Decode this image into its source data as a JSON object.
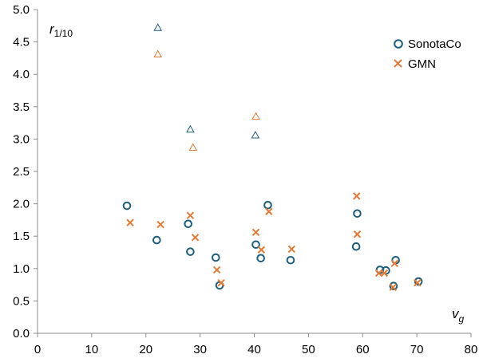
{
  "chart_data": {
    "type": "scatter",
    "xlabel": "v_g",
    "ylabel": "r_1/10",
    "xlim": [
      0,
      80
    ],
    "ylim": [
      0,
      5.0
    ],
    "x_ticks": [
      "0",
      "10",
      "20",
      "30",
      "40",
      "50",
      "60",
      "70",
      "80"
    ],
    "y_ticks": [
      "0.0",
      "0.5",
      "1.0",
      "1.5",
      "2.0",
      "2.5",
      "3.0",
      "3.5",
      "4.0",
      "4.5",
      "5.0"
    ],
    "grid": false,
    "legend_position": "top-right",
    "series": [
      {
        "name": "SonotaCo",
        "marker": "circle",
        "color": "#1f5f7a",
        "points": [
          [
            16.5,
            1.97
          ],
          [
            22.0,
            1.44
          ],
          [
            27.8,
            1.69
          ],
          [
            28.2,
            1.26
          ],
          [
            32.9,
            1.17
          ],
          [
            33.6,
            0.74
          ],
          [
            40.3,
            1.37
          ],
          [
            41.2,
            1.16
          ],
          [
            42.5,
            1.98
          ],
          [
            46.7,
            1.13
          ],
          [
            58.8,
            1.34
          ],
          [
            59.0,
            1.85
          ],
          [
            63.2,
            0.98
          ],
          [
            64.3,
            0.97
          ],
          [
            65.7,
            0.73
          ],
          [
            66.1,
            1.13
          ],
          [
            70.3,
            0.8
          ]
        ]
      },
      {
        "name": "GMN",
        "marker": "x",
        "color": "#e07b39",
        "points": [
          [
            17.1,
            1.71
          ],
          [
            22.7,
            1.68
          ],
          [
            28.2,
            1.82
          ],
          [
            29.1,
            1.48
          ],
          [
            33.1,
            0.98
          ],
          [
            33.9,
            0.78
          ],
          [
            40.3,
            1.56
          ],
          [
            41.3,
            1.29
          ],
          [
            42.7,
            1.88
          ],
          [
            46.9,
            1.3
          ],
          [
            58.9,
            2.12
          ],
          [
            59.0,
            1.53
          ],
          [
            63.0,
            0.93
          ],
          [
            64.0,
            0.93
          ],
          [
            65.6,
            0.71
          ],
          [
            65.9,
            1.08
          ],
          [
            70.1,
            0.78
          ]
        ]
      },
      {
        "name": "",
        "marker": "triangle",
        "color": "#1f5f7a",
        "points": [
          [
            22.2,
            4.72
          ],
          [
            28.2,
            3.15
          ],
          [
            40.2,
            3.06
          ]
        ]
      },
      {
        "name": "",
        "marker": "triangle",
        "color": "#e07b39",
        "points": [
          [
            22.2,
            4.31
          ],
          [
            28.7,
            2.87
          ],
          [
            40.3,
            3.35
          ]
        ]
      }
    ]
  }
}
